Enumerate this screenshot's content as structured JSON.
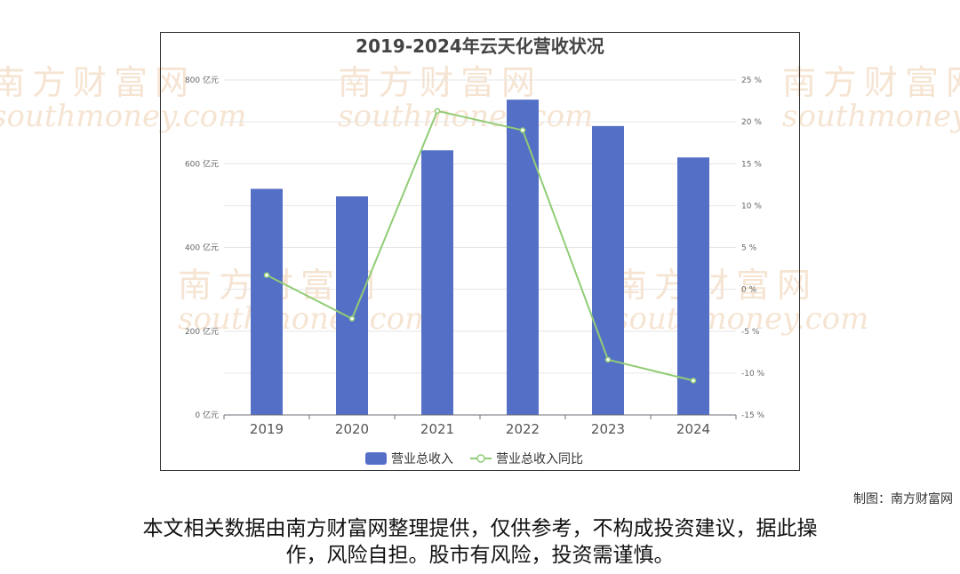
{
  "watermark": {
    "text_cn": "南方财富网",
    "text_en": "southmoney.com"
  },
  "chart_data": {
    "type": "bar",
    "title": "2019-2024年云天化营收状况",
    "categories": [
      "2019",
      "2020",
      "2021",
      "2022",
      "2023",
      "2024"
    ],
    "series": [
      {
        "name": "营业总收入",
        "type": "bar",
        "axis": "left",
        "color": "#5470c6",
        "values": [
          540,
          522,
          632,
          753,
          690,
          615
        ]
      },
      {
        "name": "营业总收入同比",
        "type": "line",
        "axis": "right",
        "color": "#91cc75",
        "values": [
          1.7,
          -3.5,
          21.3,
          19.0,
          -8.4,
          -10.9
        ]
      }
    ],
    "y_left": {
      "min": 0,
      "max": 800,
      "ticks": [
        0,
        200,
        400,
        600,
        800
      ],
      "unit": " 亿元"
    },
    "y_right": {
      "min": -15,
      "max": 25,
      "ticks": [
        -15,
        -10,
        -5,
        0,
        5,
        10,
        15,
        20,
        25
      ],
      "unit": " %"
    },
    "grid": true,
    "legend_position": "bottom"
  },
  "credit": "制图：南方财富网",
  "disclaimer": {
    "line1": "本文相关数据由南方财富网整理提供，仅供参考，不构成投资建议，据此操",
    "line2": "作，风险自担。股市有风险，投资需谨慎。"
  }
}
